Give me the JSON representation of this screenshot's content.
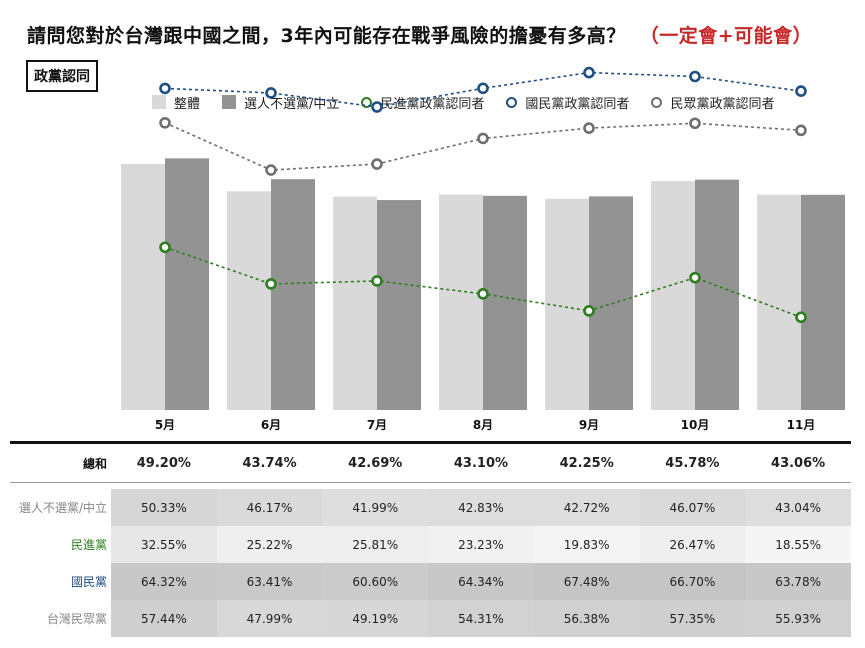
{
  "title": {
    "main": "請問您對於台灣跟中國之間，3年內可能存在戰爭風險的擔憂有多高？",
    "accent": "（一定會+可能會）"
  },
  "tag": "政黨認同",
  "colors": {
    "bar_total": "#d9d9d9",
    "bar_independent": "#939393",
    "dpp": "#2e7d1e",
    "kmt": "#1f4f82",
    "tpp": "#6e6e6e",
    "accent": "#c62828"
  },
  "legend": [
    {
      "label": "整體",
      "kind": "bar",
      "color": "#d9d9d9"
    },
    {
      "label": "選人不選黨/中立",
      "kind": "bar",
      "color": "#939393"
    },
    {
      "label": "民進黨政黨認同者",
      "kind": "ring",
      "color": "#2e7d1e"
    },
    {
      "label": "國民黨政黨認同者",
      "kind": "ring",
      "color": "#1f4f82"
    },
    {
      "label": "民眾黨政黨認同者",
      "kind": "ring",
      "color": "#6e6e6e"
    }
  ],
  "chart_data": {
    "type": "bar",
    "categories": [
      "5月",
      "6月",
      "7月",
      "8月",
      "9月",
      "10月",
      "11月"
    ],
    "ylim": [
      0,
      80
    ],
    "grid": false,
    "legend_position": "top",
    "series": [
      {
        "name": "整體",
        "kind": "bar",
        "values": [
          49.2,
          43.74,
          42.69,
          43.1,
          42.25,
          45.78,
          43.06
        ]
      },
      {
        "name": "選人不選黨/中立",
        "kind": "bar",
        "values": [
          50.33,
          46.17,
          41.99,
          42.83,
          42.72,
          46.07,
          43.04
        ]
      },
      {
        "name": "民進黨政黨認同者",
        "kind": "line",
        "values": [
          32.55,
          25.22,
          25.81,
          23.23,
          19.83,
          26.47,
          18.55
        ]
      },
      {
        "name": "國民黨政黨認同者",
        "kind": "line",
        "values": [
          64.32,
          63.41,
          60.6,
          64.34,
          67.48,
          66.7,
          63.78
        ]
      },
      {
        "name": "民眾黨政黨認同者",
        "kind": "line",
        "values": [
          57.44,
          47.99,
          49.19,
          54.31,
          56.38,
          57.35,
          55.93
        ]
      }
    ]
  },
  "table": {
    "total": {
      "label": "總和",
      "values": [
        "49.20%",
        "43.74%",
        "42.69%",
        "43.10%",
        "42.25%",
        "45.78%",
        "43.06%"
      ]
    },
    "rows": [
      {
        "label": "選人不選黨/中立",
        "label_color": "#888888",
        "values": [
          "50.33%",
          "46.17%",
          "41.99%",
          "42.83%",
          "42.72%",
          "46.07%",
          "43.04%"
        ]
      },
      {
        "label": "民進黨",
        "label_color": "#2e7d1e",
        "values": [
          "32.55%",
          "25.22%",
          "25.81%",
          "23.23%",
          "19.83%",
          "26.47%",
          "18.55%"
        ]
      },
      {
        "label": "國民黨",
        "label_color": "#1f4f82",
        "values": [
          "64.32%",
          "63.41%",
          "60.60%",
          "64.34%",
          "67.48%",
          "66.70%",
          "63.78%"
        ]
      },
      {
        "label": "台灣民眾黨",
        "label_color": "#888888",
        "values": [
          "57.44%",
          "47.99%",
          "49.19%",
          "54.31%",
          "56.38%",
          "57.35%",
          "55.93%"
        ]
      }
    ]
  }
}
